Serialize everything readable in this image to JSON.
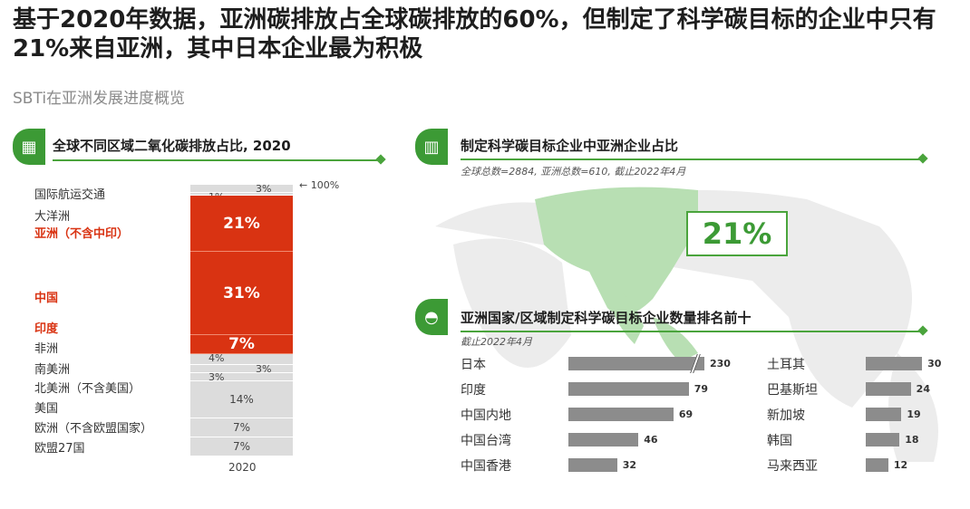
{
  "title": "基于2020年数据，亚洲碳排放占全球碳排放的60%，但制定了科学碳目标的企业中只有21%来自亚洲，其中日本企业最为积极",
  "subtitle": "SBTi在亚洲发展进度概览",
  "accent": "#3c9a35",
  "chart_data": [
    {
      "type": "bar",
      "title": "全球不同区域二氧化碳排放占比, 2020",
      "stacked": true,
      "categories": [
        "2020"
      ],
      "top_marker": "100%",
      "series": [
        {
          "name": "国际航运交通",
          "value": 3,
          "label": "3%",
          "color": "#dcdcdc"
        },
        {
          "name": "大洋洲",
          "value": 1,
          "label": "1%",
          "color": "#dcdcdc"
        },
        {
          "name": "亚洲（不含中印）",
          "value": 21,
          "label": "21%",
          "color": "#d93312"
        },
        {
          "name": "中国",
          "value": 31,
          "label": "31%",
          "color": "#d93312"
        },
        {
          "name": "印度",
          "value": 7,
          "label": "7%",
          "color": "#d93312"
        },
        {
          "name": "非洲",
          "value": 4,
          "label": "4%",
          "color": "#dcdcdc"
        },
        {
          "name": "南美洲",
          "value": 3,
          "label": "3%",
          "color": "#dcdcdc"
        },
        {
          "name": "北美洲（不含美国）",
          "value": 3,
          "label": "3%",
          "color": "#dcdcdc"
        },
        {
          "name": "美国",
          "value": 14,
          "label": "14%",
          "color": "#dcdcdc"
        },
        {
          "name": "欧洲（不含欧盟国家）",
          "value": 7,
          "label": "7%",
          "color": "#dcdcdc"
        },
        {
          "name": "欧盟27国",
          "value": 7,
          "label": "7%",
          "color": "#dcdcdc"
        }
      ]
    },
    {
      "type": "bar",
      "title": "亚洲国家/区域制定科学碳目标企业数量排名前十",
      "note": "截止2022年4月",
      "orientation": "horizontal",
      "categories": [
        "日本",
        "印度",
        "中国内地",
        "中国台湾",
        "中国香港",
        "土耳其",
        "巴基斯坦",
        "新加坡",
        "韩国",
        "马来西亚"
      ],
      "values": [
        230,
        79,
        69,
        46,
        32,
        30,
        24,
        19,
        18,
        12
      ]
    }
  ],
  "share": {
    "title": "制定科学碳目标企业中亚洲企业占比",
    "note": "全球总数=2884, 亚洲总数=610, 截止2022年4月",
    "value": "21%"
  }
}
